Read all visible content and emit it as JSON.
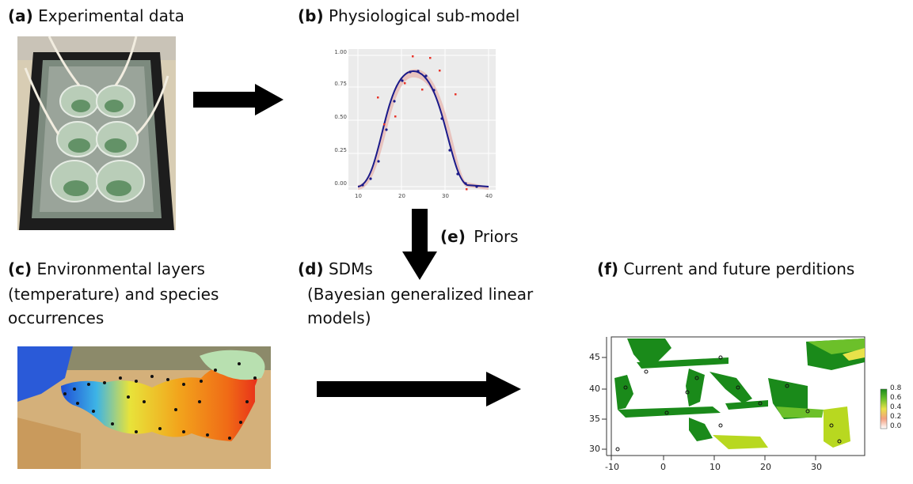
{
  "panels": {
    "a": {
      "letter": "(a)",
      "text": "Experimental data"
    },
    "b": {
      "letter": "(b)",
      "text": "Physiological sub-model"
    },
    "c": {
      "letter": "(c)",
      "text": "Environmental layers",
      "line2": "(temperature) and species",
      "line3": "occurrences"
    },
    "d": {
      "letter": "(d)",
      "text": "SDMs",
      "line2": "(Bayesian generalized linear",
      "line3": "models)"
    },
    "e": {
      "letter": "(e)",
      "text": "Priors"
    },
    "f": {
      "letter": "(f)",
      "text": "Current and future perditions"
    }
  },
  "thermal_curve": {
    "y_ticks": [
      "0.00",
      "0.25",
      "0.50",
      "0.75",
      "1.00"
    ],
    "x_ticks": [
      "10",
      "20",
      "30",
      "40"
    ]
  },
  "prediction_map": {
    "x_ticks": [
      "-10",
      "0",
      "10",
      "20",
      "30"
    ],
    "y_ticks": [
      "30",
      "35",
      "40",
      "45"
    ],
    "legend_ticks": [
      "0.8",
      "0.6",
      "0.4",
      "0.2",
      "0.0"
    ],
    "colors": {
      "high": "#1a8a1a",
      "mid": "#b8d820",
      "low": "#f4a080"
    }
  }
}
